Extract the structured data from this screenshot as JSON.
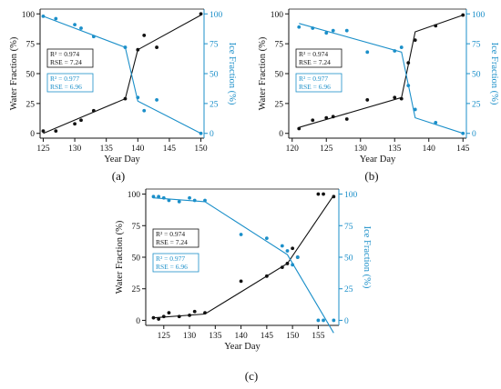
{
  "colors": {
    "water": "#111111",
    "ice": "#1b8fc9"
  },
  "chart_data": [
    {
      "type": "scatter",
      "panel_label": "(a)",
      "xlabel": "Year Day",
      "ylabel_left": "Water Fraction (%)",
      "ylabel_right": "Ice Fraction (%)",
      "xlim": [
        124.5,
        150.5
      ],
      "ylim": [
        -4,
        104
      ],
      "xticks": [
        125,
        130,
        135,
        140,
        145,
        150
      ],
      "yticks": [
        0,
        25,
        50,
        75,
        100
      ],
      "series": [
        {
          "key": "water",
          "points": [
            [
              125,
              2
            ],
            [
              127,
              2
            ],
            [
              130,
              8
            ],
            [
              131,
              11
            ],
            [
              133,
              19
            ],
            [
              138,
              29
            ],
            [
              140,
              70
            ],
            [
              141,
              82
            ],
            [
              143,
              72
            ],
            [
              150,
              100
            ]
          ],
          "fit": [
            [
              125,
              0
            ],
            [
              138,
              29
            ],
            [
              140,
              70
            ],
            [
              150,
              99
            ]
          ]
        },
        {
          "key": "ice",
          "points": [
            [
              125,
              98
            ],
            [
              127,
              96
            ],
            [
              130,
              91
            ],
            [
              131,
              88
            ],
            [
              133,
              81
            ],
            [
              138,
              72
            ],
            [
              140,
              30
            ],
            [
              141,
              19
            ],
            [
              143,
              28
            ],
            [
              150,
              0
            ]
          ],
          "fit": [
            [
              125,
              98
            ],
            [
              138,
              72
            ],
            [
              140,
              27
            ],
            [
              150,
              0
            ]
          ]
        }
      ],
      "annotations": {
        "water": {
          "r2": "R² = 0.974",
          "rse": "RSE = 7.24"
        },
        "ice": {
          "r2": "R² = 0.977",
          "rse": "RSE = 6.96"
        }
      }
    },
    {
      "type": "scatter",
      "panel_label": "(b)",
      "xlabel": "Year Day",
      "ylabel_left": "Water Fraction (%)",
      "ylabel_right": "Ice Fraction (%)",
      "xlim": [
        119.5,
        145.5
      ],
      "ylim": [
        -4,
        104
      ],
      "xticks": [
        120,
        125,
        130,
        135,
        140,
        145
      ],
      "yticks": [
        0,
        25,
        50,
        75,
        100
      ],
      "series": [
        {
          "key": "water",
          "points": [
            [
              121,
              4
            ],
            [
              123,
              11
            ],
            [
              125,
              13
            ],
            [
              126,
              14
            ],
            [
              128,
              12
            ],
            [
              131,
              28
            ],
            [
              135,
              30
            ],
            [
              136,
              29
            ],
            [
              137,
              59
            ],
            [
              138,
              78
            ],
            [
              141,
              90
            ],
            [
              145,
              99
            ]
          ],
          "fit": [
            [
              121,
              5
            ],
            [
              136,
              30
            ],
            [
              138,
              85
            ],
            [
              145,
              99
            ]
          ]
        },
        {
          "key": "ice",
          "points": [
            [
              121,
              89
            ],
            [
              123,
              88
            ],
            [
              125,
              84
            ],
            [
              126,
              86
            ],
            [
              128,
              86
            ],
            [
              131,
              68
            ],
            [
              135,
              69
            ],
            [
              136,
              72
            ],
            [
              137,
              40
            ],
            [
              138,
              20
            ],
            [
              141,
              9
            ],
            [
              145,
              0
            ]
          ],
          "fit": [
            [
              121,
              92
            ],
            [
              136,
              68
            ],
            [
              138,
              13
            ],
            [
              145,
              0
            ]
          ]
        }
      ],
      "annotations": {
        "water": {
          "r2": "R² = 0.974",
          "rse": "RSE = 7.24"
        },
        "ice": {
          "r2": "R² = 0.977",
          "rse": "RSE = 6.96"
        }
      }
    },
    {
      "type": "scatter",
      "panel_label": "(c)",
      "xlabel": "Year Day",
      "ylabel_left": "Water Fraction (%)",
      "ylabel_right": "Ice Fraction (%)",
      "xlim": [
        121.5,
        159
      ],
      "ylim": [
        -4,
        104
      ],
      "xticks": [
        125,
        130,
        135,
        140,
        145,
        150,
        155
      ],
      "yticks": [
        0,
        25,
        50,
        75,
        100
      ],
      "series": [
        {
          "key": "water",
          "points": [
            [
              123,
              2
            ],
            [
              124,
              1
            ],
            [
              125,
              3
            ],
            [
              126,
              6
            ],
            [
              128,
              3
            ],
            [
              130,
              4
            ],
            [
              131,
              7
            ],
            [
              133,
              6
            ],
            [
              140,
              31
            ],
            [
              145,
              35
            ],
            [
              148,
              42
            ],
            [
              149,
              45
            ],
            [
              150,
              57
            ],
            [
              151,
              50
            ],
            [
              155,
              100
            ],
            [
              156,
              100
            ],
            [
              158,
              98
            ]
          ],
          "fit": [
            [
              123,
              2
            ],
            [
              133,
              5
            ],
            [
              149,
              45
            ],
            [
              158,
              99
            ]
          ]
        },
        {
          "key": "ice",
          "points": [
            [
              123,
              98
            ],
            [
              124,
              98
            ],
            [
              125,
              97
            ],
            [
              126,
              95
            ],
            [
              128,
              94
            ],
            [
              130,
              97
            ],
            [
              131,
              95
            ],
            [
              133,
              95
            ],
            [
              140,
              68
            ],
            [
              145,
              65
            ],
            [
              148,
              59
            ],
            [
              149,
              55
            ],
            [
              150,
              44
            ],
            [
              151,
              50
            ],
            [
              155,
              0
            ],
            [
              156,
              0
            ],
            [
              158,
              0
            ]
          ],
          "fit": [
            [
              123,
              97
            ],
            [
              133,
              94
            ],
            [
              149,
              52
            ],
            [
              158,
              -10
            ]
          ]
        }
      ],
      "annotations": {
        "water": {
          "r2": "R² = 0.974",
          "rse": "RSE = 7.24"
        },
        "ice": {
          "r2": "R² = 0.977",
          "rse": "RSE = 6.96"
        }
      }
    }
  ]
}
